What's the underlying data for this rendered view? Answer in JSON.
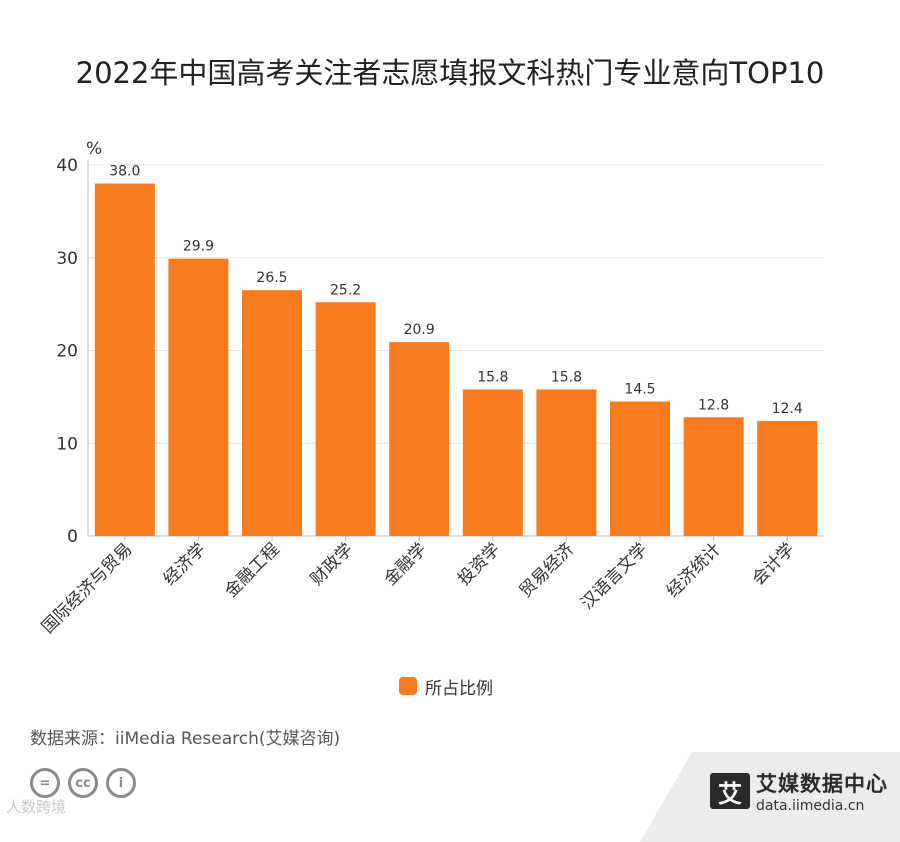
{
  "title": "2022年中国高考关注者志愿填报文科热门专业意向TOP10",
  "chart_data": {
    "type": "bar",
    "title": "2022年中国高考关注者志愿填报文科热门专业意向TOP10",
    "ylabel": "%",
    "xlabel": "",
    "ylim": [
      0,
      40
    ],
    "yticks": [
      0,
      10,
      20,
      30,
      40
    ],
    "categories": [
      "国际经济与贸易",
      "经济学",
      "金融工程",
      "财政学",
      "金融学",
      "投资学",
      "贸易经济",
      "汉语言文学",
      "经济统计",
      "会计学"
    ],
    "series": [
      {
        "name": "所占比例",
        "values": [
          38.0,
          29.9,
          26.5,
          25.2,
          20.9,
          15.8,
          15.8,
          14.5,
          12.8,
          12.4
        ]
      }
    ],
    "value_labels": [
      "38.0",
      "29.9",
      "26.5",
      "25.2",
      "20.9",
      "15.8",
      "15.8",
      "14.5",
      "12.8",
      "12.4"
    ],
    "legend_position": "bottom-center",
    "grid": true
  },
  "colors": {
    "bar": "#f97a1f",
    "grid": "#e6e6e6",
    "axis": "#bdbdbd",
    "text": "#333333"
  },
  "legend": {
    "label": "所占比例"
  },
  "source": "数据来源：iiMedia Research(艾媒咨询)",
  "license_icons": [
    "equals-icon",
    "cc-icon",
    "person-icon"
  ],
  "license_marks": [
    "=",
    "cc",
    "i"
  ],
  "watermark": "人数跨境",
  "brand": {
    "logo_char": "艾",
    "name": "艾媒数据中心",
    "url": "data.iimedia.cn"
  }
}
